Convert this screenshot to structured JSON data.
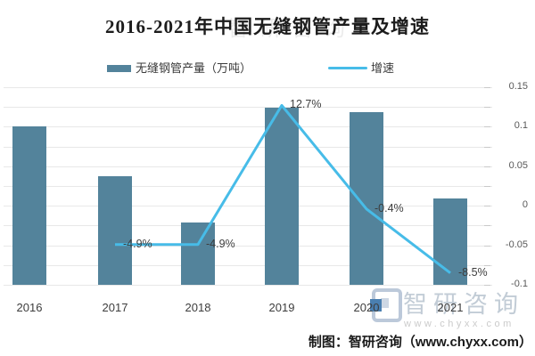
{
  "title": {
    "text": "2016-2021年中国无缝钢管产量及增速"
  },
  "legend": [
    {
      "label": "无缝钢管产量（万吨）",
      "type": "bar",
      "color": "#53839b"
    },
    {
      "label": "增速",
      "type": "line",
      "color": "#47bce8"
    }
  ],
  "chart_data": {
    "type": "bar+line combo",
    "title": "2016-2021年中国无缝钢管产量及增速",
    "categories": [
      "2016",
      "2017",
      "2018",
      "2019",
      "2020",
      "2021"
    ],
    "series": [
      {
        "name": "无缝钢管产量（万吨）",
        "type": "bar",
        "color": "#53839b",
        "value_axis": "left (no labels visible in image)",
        "bar_height_fraction_of_plot": [
          0.802,
          0.55,
          0.315,
          0.896,
          0.874,
          0.437
        ]
      },
      {
        "name": "增速",
        "type": "line",
        "color": "#47bce8",
        "value_axis": "right",
        "values": [
          null,
          -0.049,
          -0.049,
          0.127,
          -0.004,
          -0.085
        ],
        "point_labels": [
          null,
          "-4.9%",
          "-4.9%",
          "12.7%",
          "-0.4%",
          "-8.5%"
        ]
      }
    ],
    "right_axis": {
      "min": -0.1,
      "max": 0.15,
      "major_tick_labels": [
        "0.15",
        "0.1",
        "0.05",
        "0",
        "-0.05",
        "-0.1"
      ],
      "minor_tick_step": 0.025
    },
    "left_axis_labels_visible": false,
    "grid": "horizontal minor gridlines every 0.025",
    "legend_position": "top"
  },
  "watermark": {
    "behind_title": "智研咨询",
    "brand": "智研咨询",
    "url": "www.chyxx.com",
    "logo": "chyxx-logo"
  },
  "caption": {
    "text": "制图：智研咨询（www.chyxx.com）"
  }
}
